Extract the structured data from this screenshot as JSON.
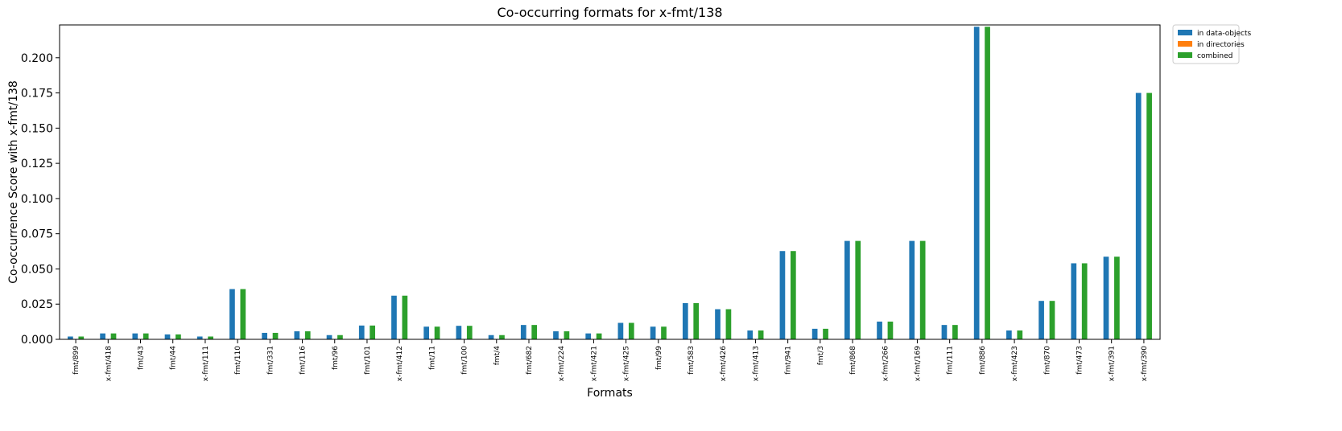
{
  "chart_data": {
    "type": "bar",
    "title": "Co-occurring formats for x-fmt/138",
    "xlabel": "Formats",
    "ylabel": "Co-occurrence Score with x-fmt/138",
    "ylim": [
      0,
      0.2233
    ],
    "yticks": [
      0.0,
      0.025,
      0.05,
      0.075,
      0.1,
      0.125,
      0.15,
      0.175,
      0.2
    ],
    "ytick_labels": [
      "0.000",
      "0.025",
      "0.050",
      "0.075",
      "0.100",
      "0.125",
      "0.150",
      "0.175",
      "0.200"
    ],
    "legend_position": "top-right, outside plot",
    "categories": [
      "fmt/899",
      "x-fmt/418",
      "fmt/43",
      "fmt/44",
      "x-fmt/111",
      "fmt/110",
      "fmt/331",
      "fmt/116",
      "fmt/96",
      "fmt/101",
      "x-fmt/412",
      "fmt/11",
      "fmt/100",
      "fmt/4",
      "fmt/682",
      "x-fmt/224",
      "x-fmt/421",
      "x-fmt/425",
      "fmt/99",
      "fmt/583",
      "x-fmt/426",
      "x-fmt/413",
      "fmt/941",
      "fmt/3",
      "fmt/868",
      "x-fmt/266",
      "x-fmt/169",
      "fmt/111",
      "fmt/886",
      "x-fmt/423",
      "fmt/870",
      "fmt/473",
      "x-fmt/391",
      "x-fmt/390"
    ],
    "series": [
      {
        "name": "in data-objects",
        "color": "#1f77b4",
        "values": [
          0.002,
          0.0042,
          0.0042,
          0.0035,
          0.002,
          0.0357,
          0.0046,
          0.0057,
          0.003,
          0.0098,
          0.031,
          0.009,
          0.0096,
          0.003,
          0.0102,
          0.0057,
          0.0042,
          0.0117,
          0.009,
          0.0257,
          0.0214,
          0.0063,
          0.0627,
          0.0075,
          0.0699,
          0.0126,
          0.0699,
          0.0102,
          0.222,
          0.0063,
          0.0273,
          0.054,
          0.0587,
          0.175
        ]
      },
      {
        "name": "in directories",
        "color": "#ff7f0e",
        "values": [
          0,
          0,
          0,
          0,
          0,
          0,
          0,
          0,
          0,
          0,
          0,
          0,
          0,
          0,
          0,
          0,
          0,
          0,
          0,
          0,
          0,
          0,
          0,
          0,
          0,
          0,
          0,
          0,
          0,
          0,
          0,
          0,
          0,
          0
        ]
      },
      {
        "name": "combined",
        "color": "#2ca02c",
        "values": [
          0.002,
          0.0042,
          0.0042,
          0.0035,
          0.002,
          0.0357,
          0.0046,
          0.0057,
          0.003,
          0.0098,
          0.031,
          0.009,
          0.0096,
          0.003,
          0.0102,
          0.0057,
          0.0042,
          0.0117,
          0.009,
          0.0257,
          0.0214,
          0.0063,
          0.0627,
          0.0075,
          0.0699,
          0.0126,
          0.0699,
          0.0102,
          0.222,
          0.0063,
          0.0273,
          0.054,
          0.0587,
          0.175
        ]
      }
    ]
  }
}
